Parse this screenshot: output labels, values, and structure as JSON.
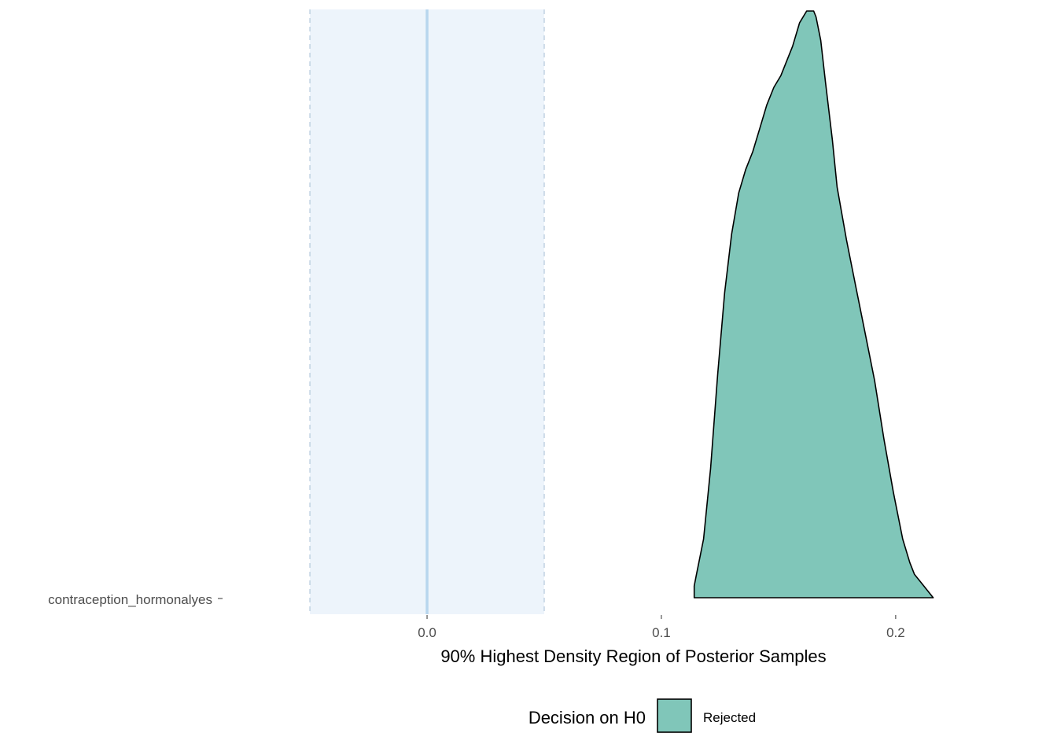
{
  "chart_data": {
    "type": "area",
    "subtype": "density-ridge",
    "title": "",
    "xlabel": "90% Highest Density Region of Posterior Samples",
    "ylabel": "",
    "xlim": [
      -0.0715,
      0.243
    ],
    "x_ticks": [
      0.0,
      0.1,
      0.2
    ],
    "x_tick_labels": [
      "0.0",
      "0.1",
      "0.2"
    ],
    "categories": [
      "contraception_hormonalyes"
    ],
    "rope": {
      "lower": -0.05,
      "upper": 0.05,
      "center": 0.0
    },
    "series": [
      {
        "category": "contraception_hormonalyes",
        "decision": "Rejected",
        "hdi": [
          0.114,
          0.216
        ],
        "density_x": [
          0.114,
          0.115,
          0.118,
          0.121,
          0.124,
          0.127,
          0.13,
          0.133,
          0.136,
          0.139,
          0.142,
          0.145,
          0.148,
          0.151,
          0.153,
          0.156,
          0.159,
          0.162,
          0.165,
          0.166,
          0.168,
          0.17,
          0.173,
          0.175,
          0.179,
          0.183,
          0.187,
          0.191,
          0.195,
          0.199,
          0.203,
          0.206,
          0.208,
          0.21,
          0.213,
          0.216
        ],
        "density_y": [
          0.02,
          0.04,
          0.1,
          0.22,
          0.38,
          0.52,
          0.62,
          0.69,
          0.73,
          0.76,
          0.8,
          0.84,
          0.87,
          0.89,
          0.91,
          0.94,
          0.98,
          1.0,
          1.0,
          0.99,
          0.95,
          0.88,
          0.78,
          0.7,
          0.61,
          0.53,
          0.45,
          0.37,
          0.27,
          0.18,
          0.1,
          0.06,
          0.04,
          0.03,
          0.015,
          0.0
        ]
      }
    ],
    "legend": {
      "title": "Decision on H0",
      "entries": [
        "Rejected"
      ],
      "position": "bottom"
    },
    "colors": {
      "rejected_fill": "#80c6b9",
      "outline": "#000000",
      "rope_fill": "#edf4fb",
      "rope_border": "#bdd0e0",
      "zero_line": "#b8d6ee"
    },
    "grid": false
  }
}
